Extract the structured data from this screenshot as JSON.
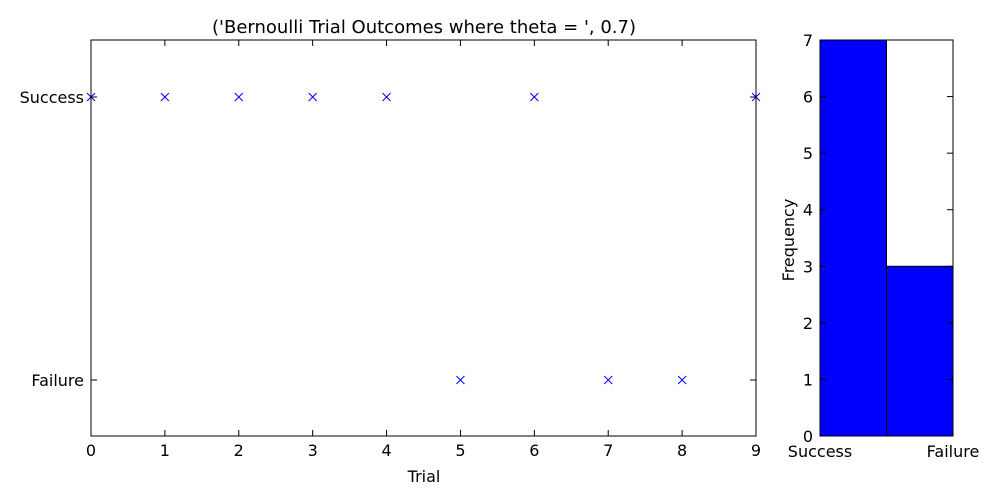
{
  "chart_data": [
    {
      "type": "scatter",
      "title": "('Bernoulli Trial Outcomes where theta = ', 0.7)",
      "xlabel": "Trial",
      "ylabel": "",
      "xlim": [
        0,
        9
      ],
      "xticks": [
        0,
        1,
        2,
        3,
        4,
        5,
        6,
        7,
        8,
        9
      ],
      "y_categories": [
        "Failure",
        "Success"
      ],
      "marker": "x",
      "color": "#0000ff",
      "grid": false,
      "points": [
        {
          "x": 0,
          "y": "Success"
        },
        {
          "x": 1,
          "y": "Success"
        },
        {
          "x": 2,
          "y": "Success"
        },
        {
          "x": 3,
          "y": "Success"
        },
        {
          "x": 4,
          "y": "Success"
        },
        {
          "x": 5,
          "y": "Failure"
        },
        {
          "x": 6,
          "y": "Success"
        },
        {
          "x": 7,
          "y": "Failure"
        },
        {
          "x": 8,
          "y": "Failure"
        },
        {
          "x": 9,
          "y": "Success"
        }
      ]
    },
    {
      "type": "bar",
      "title": "",
      "xlabel": "",
      "ylabel": "Frequency",
      "categories": [
        "Success",
        "Failure"
      ],
      "values": [
        7,
        3
      ],
      "ylim": [
        0,
        7
      ],
      "yticks": [
        0,
        1,
        2,
        3,
        4,
        5,
        6,
        7
      ],
      "color": "#0000ff",
      "grid": false
    }
  ]
}
